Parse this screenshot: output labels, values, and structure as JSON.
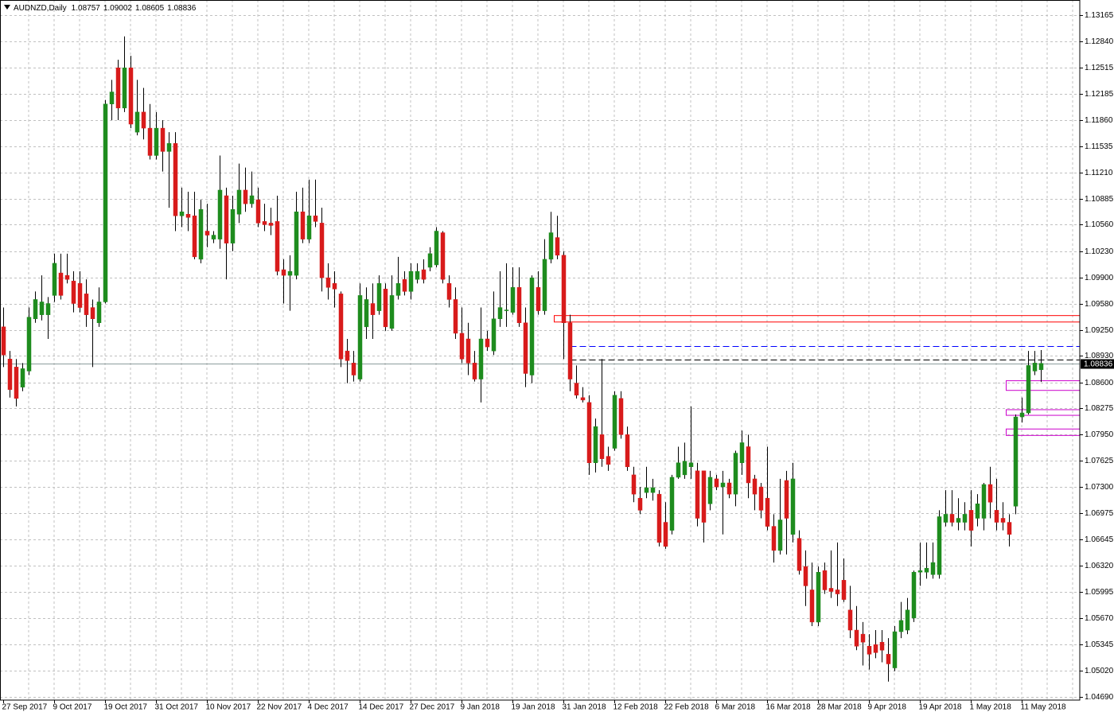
{
  "chart_data": {
    "type": "candlestick",
    "title": "AUDNZD,Daily",
    "categories": [
      "27 Sep 2017",
      null,
      null,
      null,
      null,
      null,
      null,
      null,
      "9 Oct 2017",
      null,
      null,
      null,
      null,
      null,
      null,
      null,
      "19 Oct 2017",
      null,
      null,
      null,
      null,
      null,
      null,
      null,
      "31 Oct 2017",
      null,
      null,
      null,
      null,
      null,
      null,
      null,
      "10 Nov 2017",
      null,
      null,
      null,
      null,
      null,
      null,
      null,
      "22 Nov 2017",
      null,
      null,
      null,
      null,
      null,
      null,
      null,
      "4 Dec 2017",
      null,
      null,
      null,
      null,
      null,
      null,
      null,
      "14 Dec 2017",
      null,
      null,
      null,
      null,
      null,
      null,
      null,
      "27 Dec 2017",
      null,
      null,
      null,
      null,
      null,
      null,
      null,
      "9 Jan 2018",
      null,
      null,
      null,
      null,
      null,
      null,
      null,
      "19 Jan 2018",
      null,
      null,
      null,
      null,
      null,
      null,
      null,
      "31 Jan 2018",
      null,
      null,
      null,
      null,
      null,
      null,
      null,
      "12 Feb 2018",
      null,
      null,
      null,
      null,
      null,
      null,
      null,
      "22 Feb 2018",
      null,
      null,
      null,
      null,
      null,
      null,
      null,
      "6 Mar 2018",
      null,
      null,
      null,
      null,
      null,
      null,
      null,
      "16 Mar 2018",
      null,
      null,
      null,
      null,
      null,
      null,
      null,
      "28 Mar 2018",
      null,
      null,
      null,
      null,
      null,
      null,
      null,
      "9 Apr 2018",
      null,
      null,
      null,
      null,
      null,
      null,
      null,
      "19 Apr 2018",
      null,
      null,
      null,
      null,
      null,
      null,
      null,
      "1 May 2018",
      null,
      null,
      null,
      null,
      null,
      null,
      null,
      "11 May 2018",
      null,
      null,
      null
    ],
    "open": [
      1.0929,
      1.0889,
      1.0879,
      1.0854,
      1.0874,
      1.0939,
      1.0944,
      1.0944,
      1.0968,
      1.0996,
      1.0993,
      1.0986,
      1.0983,
      1.097,
      1.0953,
      1.0934,
      1.096,
      1.1206,
      1.1251,
      1.1201,
      1.1251,
      1.1171,
      1.1196,
      1.1176,
      1.1142,
      1.1176,
      1.1147,
      1.1157,
      1.1067,
      1.1069,
      1.1067,
      1.1013,
      1.1048,
      1.1038,
      1.1038,
      1.1092,
      1.1033,
      1.1069,
      1.1099,
      1.1082,
      1.1087,
      1.106,
      1.1058,
      1.106,
      1.1,
      1.0993,
      1.0993,
      1.1072,
      1.1038,
      1.1067,
      1.1058,
      1.099,
      1.0983,
      1.097,
      1.0899,
      1.0884,
      1.0864,
      1.0929,
      1.0958,
      1.0949,
      1.0976,
      1.0927,
      1.0968,
      1.0988,
      1.0973,
      1.0988,
      1.1,
      1.1003,
      1.1006,
      1.1046,
      1.0983,
      1.0963,
      1.0921,
      1.0914,
      1.0884,
      1.0864,
      1.0914,
      1.0899,
      1.0939,
      1.0949,
      1.0947,
      1.0978,
      1.0934,
      1.0869,
      1.0978,
      1.0949,
      1.1013,
      1.104,
      1.1018,
      1.0934,
      1.0859,
      1.0841,
      1.0835,
      1.076,
      1.0795,
      1.0768,
      1.0778,
      1.084,
      1.0795,
      1.0745,
      1.0716,
      1.0723,
      1.0723,
      1.0721,
      1.0686,
      1.0676,
      1.0742,
      1.0745,
      1.0755,
      1.075,
      1.075,
      1.0709,
      1.074,
      1.073,
      1.0735,
      1.0721,
      1.076,
      1.078,
      1.074,
      1.073,
      1.0716,
      1.0681,
      1.0651,
      1.0738,
      1.0671,
      1.0666,
      1.0631,
      1.0602,
      1.0562,
      1.0626,
      1.0604,
      1.0602,
      1.0614,
      1.0577,
      1.0552,
      1.0547,
      1.0532,
      1.0534,
      1.0537,
      1.0522,
      1.0505,
      1.055,
      1.0552,
      1.0567,
      1.0624,
      1.0624,
      1.0621,
      1.0621,
      1.0686,
      1.0696,
      1.0686,
      1.0686,
      1.0701,
      1.0691,
      1.0691,
      1.0733,
      1.0701,
      1.0691,
      1.0686,
      1.0706,
      1.0817,
      1.0822,
      1.0874,
      1.08757
    ],
    "high": [
      1.0953,
      1.0899,
      1.0889,
      1.0884,
      1.0953,
      1.0973,
      1.0993,
      1.0966,
      1.102,
      1.102,
      1.102,
      1.0998,
      1.0998,
      1.0988,
      1.0963,
      1.0978,
      1.1211,
      1.1236,
      1.1261,
      1.129,
      1.1266,
      1.1236,
      1.1226,
      1.1206,
      1.1196,
      1.1186,
      1.1171,
      1.1171,
      1.1102,
      1.1097,
      1.1097,
      1.1087,
      1.1082,
      1.1048,
      1.1142,
      1.1102,
      1.1092,
      1.1132,
      1.1127,
      1.1122,
      1.1102,
      1.1082,
      1.1077,
      1.1092,
      1.1013,
      1.1018,
      1.1097,
      1.1102,
      1.1112,
      1.1112,
      1.1077,
      1.1008,
      1.0998,
      1.0973,
      1.0914,
      1.0899,
      1.0983,
      1.0978,
      1.0983,
      1.0993,
      1.0983,
      1.0993,
      1.1016,
      1.0998,
      1.1008,
      1.1008,
      1.1013,
      1.1028,
      1.1053,
      1.1048,
      1.0993,
      1.0978,
      1.0953,
      1.0934,
      1.0899,
      1.0953,
      1.0924,
      1.0973,
      1.0998,
      1.1008,
      1.1003,
      1.1003,
      1.0953,
      1.0993,
      1.0998,
      1.1038,
      1.1072,
      1.1067,
      1.1023,
      1.0944,
      1.0881,
      1.0854,
      1.0844,
      1.0815,
      1.0889,
      1.078,
      1.0849,
      1.0849,
      1.0805,
      1.0755,
      1.073,
      1.0755,
      1.074,
      1.0726,
      1.0711,
      1.0745,
      1.078,
      1.0785,
      1.083,
      1.076,
      1.075,
      1.075,
      1.0745,
      1.075,
      1.074,
      1.0775,
      1.08,
      1.0795,
      1.0745,
      1.0735,
      1.078,
      1.0696,
      1.074,
      1.075,
      1.076,
      1.0676,
      1.0651,
      1.0636,
      1.0631,
      1.0636,
      1.0651,
      1.0661,
      1.0641,
      1.0607,
      1.0582,
      1.0562,
      1.0547,
      1.0552,
      1.0552,
      1.0542,
      1.0557,
      1.0587,
      1.0592,
      1.0626,
      1.0661,
      1.0661,
      1.0661,
      1.0701,
      1.0726,
      1.0726,
      1.0716,
      1.0711,
      1.0726,
      1.0721,
      1.0735,
      1.0755,
      1.074,
      1.0711,
      1.0696,
      1.082,
      1.0841,
      1.0899,
      1.0899,
      1.09002
    ],
    "low": [
      1.0879,
      1.0841,
      1.083,
      1.0849,
      1.0869,
      1.0934,
      1.0937,
      1.0914,
      1.096,
      1.0963,
      1.0983,
      1.0947,
      1.0947,
      1.0929,
      1.0879,
      1.0929,
      1.0958,
      1.1186,
      1.1186,
      1.1196,
      1.1176,
      1.1167,
      1.1162,
      1.1137,
      1.1137,
      1.1122,
      1.1077,
      1.1048,
      1.1053,
      1.1048,
      1.1013,
      1.1008,
      1.1028,
      1.1033,
      1.1026,
      1.0988,
      1.1023,
      1.1058,
      1.1072,
      1.1077,
      1.1053,
      1.1048,
      1.1043,
      1.0993,
      1.0958,
      1.0949,
      1.0988,
      1.1033,
      1.1033,
      1.1053,
      1.0973,
      1.0963,
      1.0953,
      1.0879,
      1.0859,
      1.0861,
      1.0861,
      1.0914,
      1.0914,
      1.0944,
      1.0924,
      1.0924,
      1.0963,
      1.0968,
      1.0963,
      1.0983,
      1.0983,
      1.0998,
      1.1003,
      1.0983,
      1.0953,
      1.0914,
      1.0884,
      1.0869,
      1.0861,
      1.0835,
      1.0899,
      1.0894,
      1.0929,
      1.0929,
      1.0944,
      1.0929,
      1.0854,
      1.0859,
      1.0944,
      1.0944,
      1.1008,
      1.1013,
      1.0889,
      1.0849,
      1.084,
      1.0835,
      1.0745,
      1.0748,
      1.0755,
      1.075,
      1.0775,
      1.079,
      1.075,
      1.0711,
      1.0696,
      1.0716,
      1.0713,
      1.0656,
      1.0653,
      1.0671,
      1.074,
      1.074,
      1.074,
      1.0681,
      1.0661,
      1.0701,
      1.0726,
      1.0671,
      1.0716,
      1.0706,
      1.0745,
      1.0716,
      1.0701,
      1.0691,
      1.0676,
      1.0636,
      1.0646,
      1.0646,
      1.0661,
      1.0621,
      1.0582,
      1.0557,
      1.0557,
      1.0597,
      1.0592,
      1.0582,
      1.0587,
      1.0542,
      1.0527,
      1.0508,
      1.0503,
      1.0517,
      1.0512,
      1.0488,
      1.0501,
      1.0542,
      1.0547,
      1.0562,
      1.0607,
      1.0616,
      1.0616,
      1.0616,
      1.0681,
      1.0681,
      1.0676,
      1.0676,
      1.0656,
      1.0681,
      1.0676,
      1.0691,
      1.0676,
      1.0676,
      1.0656,
      1.0696,
      1.081,
      1.082,
      1.0869,
      1.08605
    ],
    "close": [
      1.0894,
      1.0851,
      1.084,
      1.0877,
      1.0941,
      1.0963,
      1.096,
      1.0958,
      1.1008,
      1.0968,
      1.0988,
      1.0958,
      1.0953,
      1.0944,
      1.0939,
      1.096,
      1.1206,
      1.1221,
      1.1201,
      1.1251,
      1.1181,
      1.1196,
      1.1176,
      1.1142,
      1.1176,
      1.1147,
      1.1157,
      1.1067,
      1.1072,
      1.1065,
      1.1016,
      1.1075,
      1.1043,
      1.1043,
      1.1099,
      1.1033,
      1.1075,
      1.1099,
      1.1082,
      1.1092,
      1.1058,
      1.1056,
      1.1055,
      1.0998,
      1.0993,
      1.0998,
      1.1072,
      1.1038,
      1.1067,
      1.106,
      1.099,
      1.0978,
      1.0976,
      1.0889,
      1.0887,
      1.0869,
      1.0968,
      1.0963,
      1.0944,
      1.0983,
      1.0929,
      1.0968,
      1.0983,
      1.0973,
      1.0998,
      1.0998,
      1.0988,
      1.102,
      1.1048,
      1.0988,
      1.0963,
      1.0921,
      1.0889,
      1.0884,
      1.0864,
      1.0914,
      1.0904,
      1.0939,
      1.0953,
      1.095,
      1.0978,
      1.0934,
      1.0871,
      1.099,
      1.0949,
      1.1013,
      1.1046,
      1.1018,
      1.0934,
      1.0864,
      1.0844,
      1.0838,
      1.076,
      1.0805,
      1.0765,
      1.0758,
      1.0844,
      1.0795,
      1.0755,
      1.0721,
      1.0701,
      1.0729,
      1.0729,
      1.0661,
      1.0656,
      1.0742,
      1.076,
      1.0762,
      1.076,
      1.0691,
      1.0686,
      1.0742,
      1.073,
      1.0735,
      1.0721,
      1.0772,
      1.0785,
      1.0735,
      1.0721,
      1.0701,
      1.0681,
      1.0651,
      1.0689,
      1.0691,
      1.074,
      1.0626,
      1.0607,
      1.0562,
      1.0624,
      1.0602,
      1.06,
      1.0597,
      1.059,
      1.0552,
      1.0532,
      1.0537,
      1.0522,
      1.0524,
      1.0527,
      1.051,
      1.055,
      1.0564,
      1.0577,
      1.0624,
      1.0626,
      1.0629,
      1.0636,
      1.0693,
      1.0696,
      1.0686,
      1.0691,
      1.0696,
      1.0676,
      1.0709,
      1.0733,
      1.0711,
      1.0686,
      1.0686,
      1.0671,
      1.0817,
      1.0822,
      1.0881,
      1.0884,
      1.08836
    ],
    "up_color": "#1e8c1e",
    "down_color": "#d81b1b",
    "wick_color": "#000000",
    "ylim": [
      1.0465,
      1.13353
    ],
    "yticks": [
      1.13165,
      {
        "value": 1.1284,
        "label": "1.12840"
      },
      1.12515,
      1.12185,
      {
        "value": 1.1186,
        "label": "1.11860"
      },
      1.11535,
      {
        "value": 1.1121,
        "label": "1.11210"
      },
      1.10885,
      {
        "value": 1.1056,
        "label": "1.10560"
      },
      {
        "value": 1.1023,
        "label": "1.10230"
      },
      {
        "value": 1.099,
        "label": "1.09900"
      },
      {
        "value": 1.0958,
        "label": "1.09580"
      },
      {
        "value": 1.0925,
        "label": "1.09250"
      },
      {
        "value": 1.0893,
        "label": "1.08930"
      },
      {
        "value": 1.086,
        "label": "1.08600"
      },
      1.08275,
      {
        "value": 1.0795,
        "label": "1.07950"
      },
      1.07625,
      {
        "value": 1.073,
        "label": "1.07300"
      },
      1.06975,
      1.06645,
      {
        "value": 1.0632,
        "label": "1.06320"
      },
      1.05995,
      {
        "value": 1.0567,
        "label": "1.05670"
      },
      1.05345,
      {
        "value": 1.0502,
        "label": "1.05020"
      },
      {
        "value": 1.0469,
        "label": "1.04690"
      }
    ],
    "grid": true,
    "levels": [
      {
        "value": 1.0905,
        "color": "#0000ff"
      },
      {
        "value": 1.0888,
        "color": "#000000"
      }
    ],
    "zones": [
      {
        "low": 1.0935,
        "high": 1.0943,
        "color": "#ff0000"
      },
      {
        "low": 1.085,
        "high": 1.0862,
        "color": "#cc00cc"
      },
      {
        "low": 1.0819,
        "high": 1.0826,
        "color": "#cc00cc"
      },
      {
        "low": 1.0794,
        "high": 1.0802,
        "color": "#cc00cc"
      }
    ]
  }
}
